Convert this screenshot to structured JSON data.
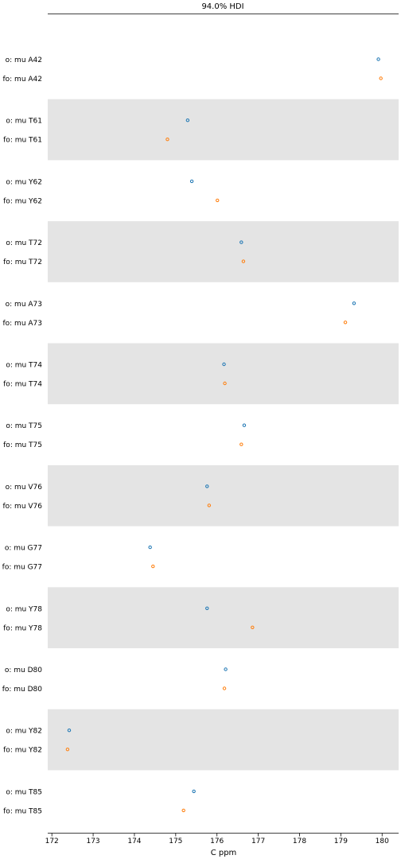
{
  "chart_data": {
    "type": "forest",
    "title": "94.0% HDI",
    "xlabel": "C ppm",
    "xlim": [
      171.9,
      180.4
    ],
    "xticks": [
      "172",
      "173",
      "174",
      "175",
      "176",
      "177",
      "178",
      "179",
      "180"
    ],
    "xtick_values": [
      172,
      173,
      174,
      175,
      176,
      177,
      178,
      179,
      180
    ],
    "grid": false,
    "shaded_bands": true,
    "colors": {
      "o": "#1f77b4",
      "fo": "#ff7f0e",
      "band": "#e4e4e4"
    },
    "groups": [
      {
        "labels": [
          "o: mu A42",
          "fo: mu A42"
        ],
        "values": [
          179.91,
          179.97
        ]
      },
      {
        "labels": [
          "o: mu T61",
          "fo: mu T61"
        ],
        "values": [
          175.29,
          174.8
        ]
      },
      {
        "labels": [
          "o: mu Y62",
          "fo: mu Y62"
        ],
        "values": [
          175.39,
          176.01
        ]
      },
      {
        "labels": [
          "o: mu T72",
          "fo: mu T72"
        ],
        "values": [
          176.59,
          176.64
        ]
      },
      {
        "labels": [
          "o: mu A73",
          "fo: mu A73"
        ],
        "values": [
          179.32,
          179.11
        ]
      },
      {
        "labels": [
          "o: mu T74",
          "fo: mu T74"
        ],
        "values": [
          176.17,
          176.19
        ]
      },
      {
        "labels": [
          "o: mu T75",
          "fo: mu T75"
        ],
        "values": [
          176.66,
          176.59
        ]
      },
      {
        "labels": [
          "o: mu V76",
          "fo: mu V76"
        ],
        "values": [
          175.76,
          175.81
        ]
      },
      {
        "labels": [
          "o: mu G77",
          "fo: mu G77"
        ],
        "values": [
          174.38,
          174.45
        ]
      },
      {
        "labels": [
          "o: mu Y78",
          "fo: mu Y78"
        ],
        "values": [
          175.76,
          176.86
        ]
      },
      {
        "labels": [
          "o: mu D80",
          "fo: mu D80"
        ],
        "values": [
          176.21,
          176.18
        ]
      },
      {
        "labels": [
          "o: mu Y82",
          "fo: mu Y82"
        ],
        "values": [
          172.42,
          172.38
        ]
      },
      {
        "labels": [
          "o: mu T85",
          "fo: mu T85"
        ],
        "values": [
          175.44,
          175.19
        ]
      }
    ]
  }
}
